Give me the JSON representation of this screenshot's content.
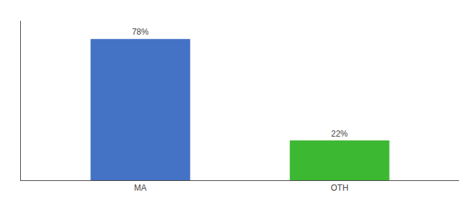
{
  "chart_data": {
    "type": "bar",
    "categories": [
      "MA",
      "OTH"
    ],
    "values": [
      78,
      22
    ],
    "value_labels": [
      "78%",
      "22%"
    ],
    "data_labels": true,
    "colors": [
      "#4472c4",
      "#3cb832"
    ],
    "ylim": [
      0,
      88
    ],
    "grid": false,
    "tick_labels": "x"
  }
}
